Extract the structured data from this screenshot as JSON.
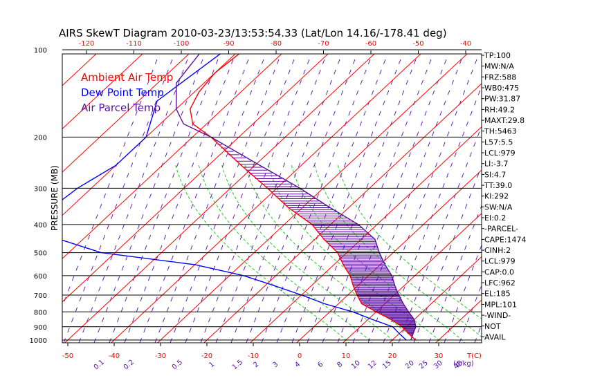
{
  "chart_data": {
    "type": "skewt",
    "title": "AIRS SkewT Diagram 2010-03-23/13:53:54.33 (Lat/Lon 14.16/-178.41 deg)",
    "ylabel": "PRESSURE (MB)",
    "pressure_ticks": [
      {
        "p": 100,
        "label": "100"
      },
      {
        "p": 200,
        "label": "200"
      },
      {
        "p": 300,
        "label": "300"
      },
      {
        "p": 400,
        "label": "400"
      },
      {
        "p": 500,
        "label": "500"
      },
      {
        "p": 600,
        "label": "600"
      },
      {
        "p": 700,
        "label": "700"
      },
      {
        "p": 800,
        "label": "800"
      },
      {
        "p": 900,
        "label": "900"
      },
      {
        "p": 1000,
        "label": "1000"
      }
    ],
    "top_temp_labels": [
      "-120",
      "-110",
      "-100",
      "-90",
      "-80",
      "-70",
      "-60",
      "-50",
      "-40"
    ],
    "bottom_temp_labels": [
      "-50",
      "-40",
      "-30",
      "-20",
      "-10",
      "0",
      "10",
      "20",
      "30"
    ],
    "bottom_axis_unit": "T(C)",
    "mixing_ratio_labels": [
      "0.1",
      "0.2",
      "0.5",
      "1",
      "1.5",
      "2",
      "3",
      "4",
      "6",
      "8",
      "10",
      "12",
      "15",
      "20",
      "25",
      "30",
      "40"
    ],
    "mixing_ratio_unit": "(g/kg)",
    "legend": [
      {
        "label": "Ambient Air Temp",
        "color": "#ff0000"
      },
      {
        "label": "Dew Point Temp",
        "color": "#0000ff"
      },
      {
        "label": "Air Parcel Temp",
        "color": "#5a0fa0"
      }
    ],
    "series": [
      {
        "name": "Ambient Air Temp",
        "color": "#ff0000",
        "points": [
          [
            100,
            -79
          ],
          [
            120,
            -80
          ],
          [
            140,
            -79
          ],
          [
            160,
            -77
          ],
          [
            180,
            -73
          ],
          [
            200,
            -66
          ],
          [
            250,
            -53
          ],
          [
            300,
            -42
          ],
          [
            350,
            -33
          ],
          [
            400,
            -24
          ],
          [
            450,
            -18
          ],
          [
            500,
            -12
          ],
          [
            550,
            -8
          ],
          [
            600,
            -4
          ],
          [
            650,
            -1
          ],
          [
            700,
            2
          ],
          [
            750,
            5
          ],
          [
            800,
            10
          ],
          [
            850,
            15
          ],
          [
            900,
            19
          ],
          [
            950,
            22
          ],
          [
            1000,
            25
          ]
        ]
      },
      {
        "name": "Dew Point Temp",
        "color": "#0000ff",
        "points": [
          [
            100,
            -83
          ],
          [
            150,
            -86
          ],
          [
            200,
            -80
          ],
          [
            250,
            -80
          ],
          [
            300,
            -83
          ],
          [
            350,
            -84
          ],
          [
            400,
            -86
          ],
          [
            450,
            -75
          ],
          [
            500,
            -63
          ],
          [
            550,
            -40
          ],
          [
            600,
            -27
          ],
          [
            650,
            -18
          ],
          [
            700,
            -10
          ],
          [
            750,
            -3
          ],
          [
            800,
            5
          ],
          [
            850,
            11
          ],
          [
            900,
            17
          ],
          [
            950,
            20
          ],
          [
            1000,
            23
          ]
        ]
      },
      {
        "name": "Air Parcel Temp",
        "color": "#5a0fa0",
        "points": [
          [
            100,
            -88
          ],
          [
            130,
            -86
          ],
          [
            160,
            -80
          ],
          [
            180,
            -75
          ],
          [
            200,
            -66
          ],
          [
            250,
            -49
          ],
          [
            300,
            -35
          ],
          [
            350,
            -24
          ],
          [
            400,
            -14
          ],
          [
            450,
            -7
          ],
          [
            500,
            -3
          ],
          [
            550,
            1
          ],
          [
            600,
            5
          ],
          [
            650,
            8
          ],
          [
            700,
            11
          ],
          [
            750,
            14
          ],
          [
            800,
            17
          ],
          [
            850,
            20
          ],
          [
            900,
            22
          ],
          [
            950,
            23
          ],
          [
            1000,
            24
          ]
        ]
      }
    ],
    "params": [
      {
        "label": "TP:100"
      },
      {
        "label": "MW:N/A"
      },
      {
        "label": "FRZ:588"
      },
      {
        "label": "WB0:475"
      },
      {
        "label": "PW:31.87"
      },
      {
        "label": "RH:49.2"
      },
      {
        "label": "MAXT:29.8"
      },
      {
        "label": "TH:5463"
      },
      {
        "label": "L57:5.5"
      },
      {
        "label": "LCL:979"
      },
      {
        "label": "LI:-3.7"
      },
      {
        "label": "SI:4.7"
      },
      {
        "label": "TT:39.0"
      },
      {
        "label": "KI:292"
      },
      {
        "label": "SW:N/A"
      },
      {
        "label": "EI:0.2"
      },
      {
        "label": "-PARCEL-"
      },
      {
        "label": "CAPE:1474"
      },
      {
        "label": "CINH:2"
      },
      {
        "label": "LCL:979"
      },
      {
        "label": "CAP:0.0"
      },
      {
        "label": "LFC:962"
      },
      {
        "label": "EL:185"
      },
      {
        "label": "MPL:101"
      },
      {
        "label": "-WIND-"
      },
      {
        "label": "NOT"
      },
      {
        "label": "AVAIL"
      }
    ]
  }
}
